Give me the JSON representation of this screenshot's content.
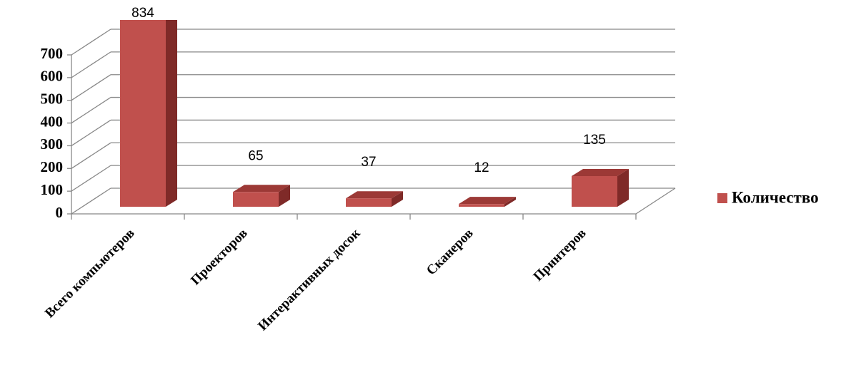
{
  "chart_data": {
    "type": "bar3d",
    "categories": [
      "Всего компьютеров",
      "Проекторов",
      "Интерактивных досок",
      "Сканеров",
      "Принтеров"
    ],
    "series": [
      {
        "name": "Количество",
        "color": "#c0504d",
        "values": [
          834,
          65,
          37,
          12,
          135
        ]
      }
    ],
    "ylim": [
      0,
      700
    ],
    "yticks": [
      0,
      100,
      200,
      300,
      400,
      500,
      600,
      700
    ],
    "grid": true,
    "legend": "right"
  }
}
